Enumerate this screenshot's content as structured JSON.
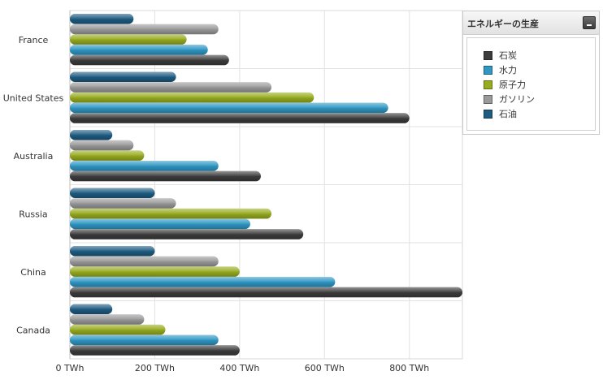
{
  "chart_data": {
    "type": "bar",
    "orientation": "horizontal",
    "categories": [
      "France",
      "United States",
      "Australia",
      "Russia",
      "China",
      "Canada"
    ],
    "series": [
      {
        "name": "石炭",
        "color": "#3c3c3c",
        "values": [
          375,
          800,
          450,
          550,
          925,
          400
        ]
      },
      {
        "name": "水力",
        "color": "#2f97c4",
        "values": [
          325,
          750,
          350,
          425,
          625,
          350
        ]
      },
      {
        "name": "原子力",
        "color": "#98ac1f",
        "values": [
          275,
          575,
          175,
          475,
          400,
          225
        ]
      },
      {
        "name": "ガソリン",
        "color": "#9a9a9a",
        "values": [
          350,
          475,
          150,
          250,
          350,
          175
        ]
      },
      {
        "name": "石油",
        "color": "#1e5c82",
        "values": [
          150,
          250,
          100,
          200,
          200,
          100
        ]
      }
    ],
    "x_ticks": [
      "0 TWh",
      "200 TWh",
      "400 TWh",
      "600 TWh",
      "800 TWh"
    ],
    "xlim": [
      0,
      925
    ],
    "grid": true,
    "legend_placement": "top-right",
    "legend_title": "エネルギーの生産"
  }
}
